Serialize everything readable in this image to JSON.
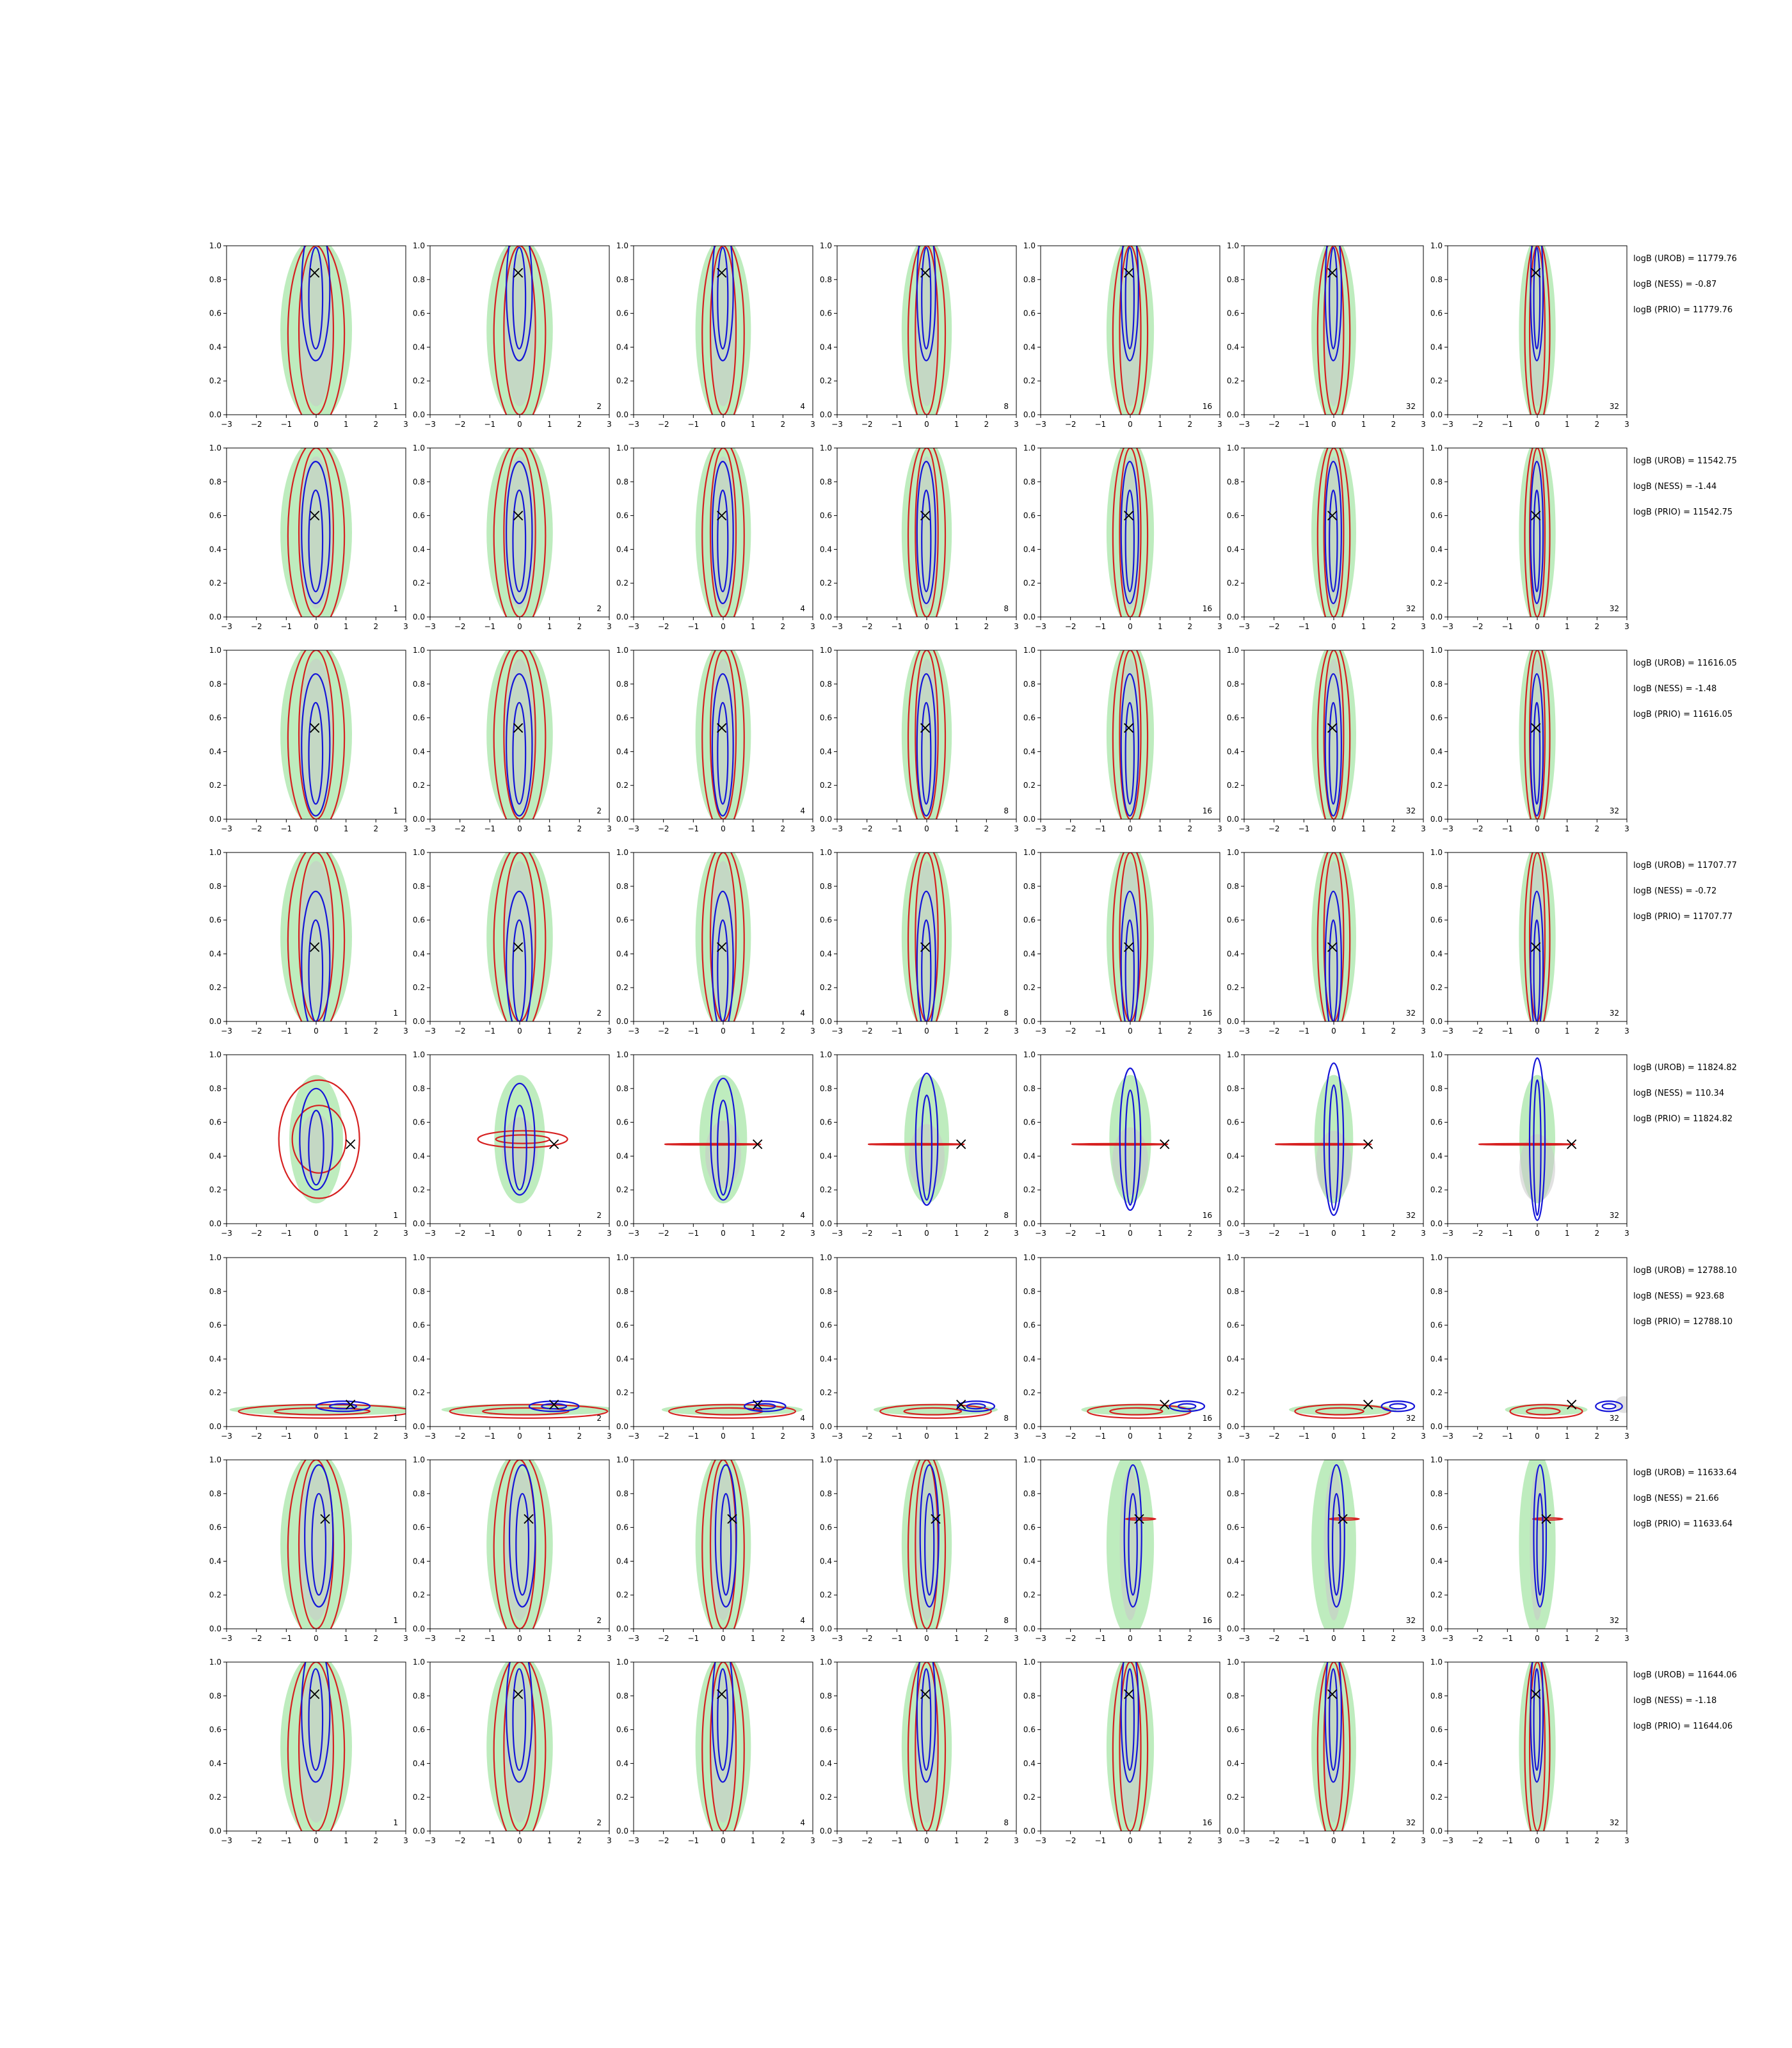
{
  "chart_data": {
    "type": "contour-grid",
    "title": "",
    "xlabel": "",
    "ylabel": "",
    "xlim": [
      -3,
      3
    ],
    "ylim": [
      0,
      1
    ],
    "x_ticks": [
      "−3",
      "−2",
      "−1",
      "0",
      "1",
      "2",
      "3"
    ],
    "y_ticks": [
      "0.0",
      "0.2",
      "0.4",
      "0.6",
      "0.8",
      "1.0"
    ],
    "column_labels": [
      "1",
      "2",
      "4",
      "8",
      "16",
      "32",
      "32"
    ],
    "colors": {
      "prior_fill": "#a8e6a8",
      "gray_fill": "#c8c8c8",
      "red": "#d62020",
      "blue": "#1515d8",
      "marker": "#000000"
    },
    "rows": [
      {
        "notes": [
          "logB (UROB) = 11779.76",
          "logB (NESS) = -0.87",
          "logB (PRIO) = 11779.76"
        ],
        "marker": [
          -0.05,
          0.84
        ]
      },
      {
        "notes": [
          "logB (UROB) = 11542.75",
          "logB (NESS) = -1.44",
          "logB (PRIO) = 11542.75"
        ],
        "marker": [
          -0.05,
          0.6
        ]
      },
      {
        "notes": [
          "logB (UROB) = 11616.05",
          "logB (NESS) = -1.48",
          "logB (PRIO) = 11616.05"
        ],
        "marker": [
          -0.05,
          0.54
        ]
      },
      {
        "notes": [
          "logB (UROB) = 11707.77",
          "logB (NESS) = -0.72",
          "logB (PRIO) = 11707.77"
        ],
        "marker": [
          -0.05,
          0.44
        ]
      },
      {
        "notes": [
          "logB (UROB) = 11824.82",
          "logB (NESS) = 110.34",
          "logB (PRIO) = 11824.82"
        ],
        "marker": [
          1.15,
          0.47
        ]
      },
      {
        "notes": [
          "logB (UROB) = 12788.10",
          "logB (NESS) = 923.68",
          "logB (PRIO) = 12788.10"
        ],
        "marker": [
          1.15,
          0.13
        ]
      },
      {
        "notes": [
          "logB (UROB) = 11633.64",
          "logB (NESS) = 21.66",
          "logB (PRIO) = 11633.64"
        ],
        "marker": [
          0.3,
          0.65
        ]
      },
      {
        "notes": [
          "logB (UROB) = 11644.06",
          "logB (NESS) = -1.18",
          "logB (PRIO) = 11644.06"
        ],
        "marker": [
          -0.05,
          0.81
        ]
      }
    ]
  }
}
